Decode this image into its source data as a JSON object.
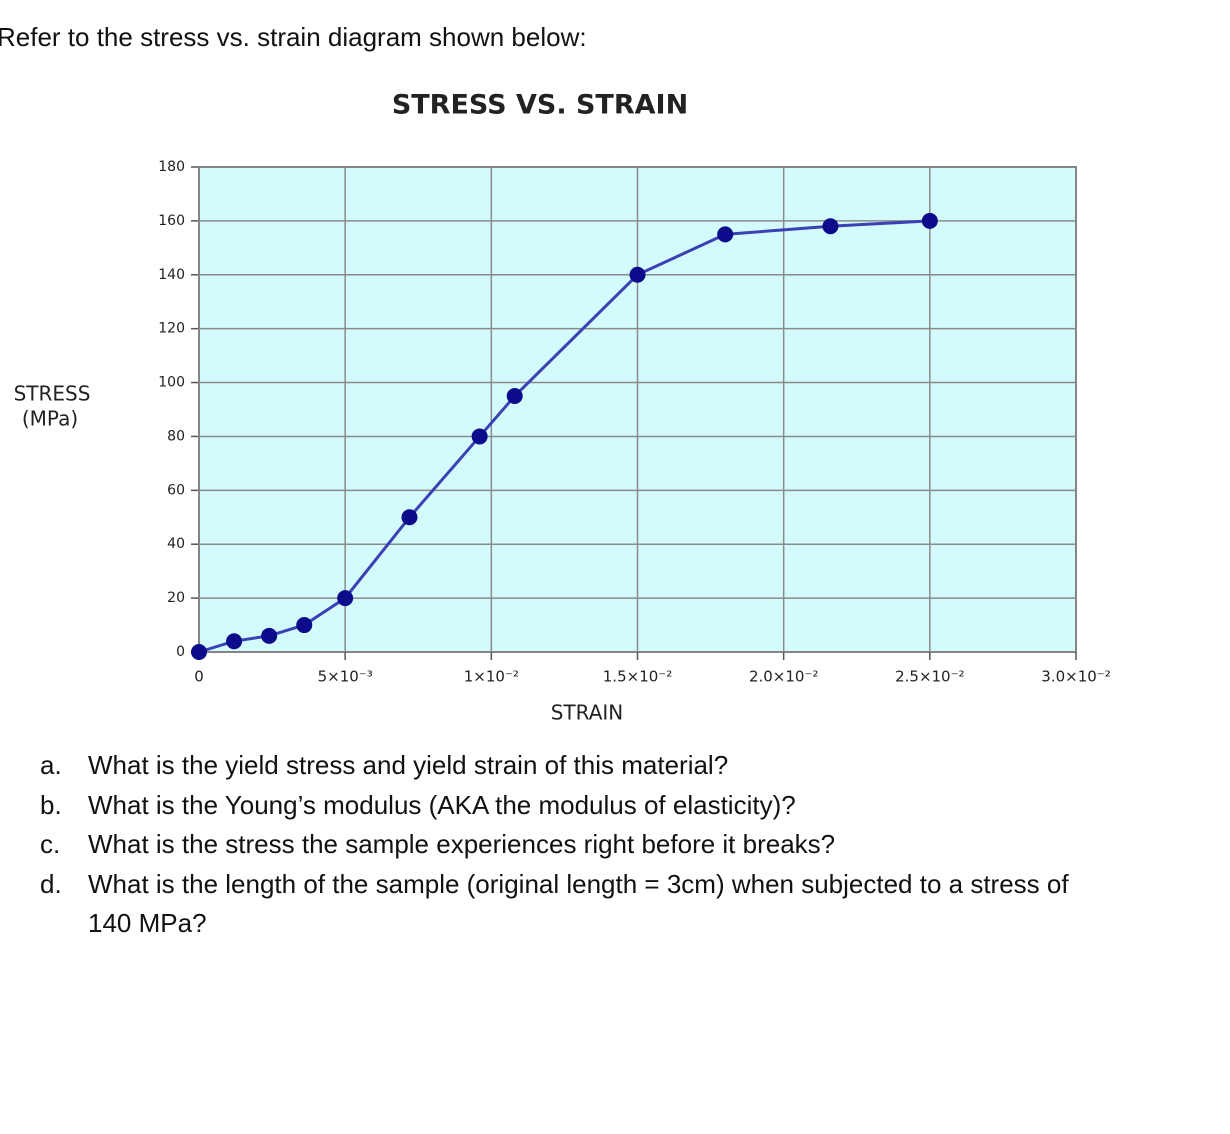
{
  "intro": "Refer to the stress vs. strain diagram shown below:",
  "chart_data": {
    "type": "line",
    "title": "STRESS VS. STRAIN",
    "xlabel": "STRAIN",
    "ylabel_lines": [
      "STRESS",
      "(MPa)"
    ],
    "x": [
      0,
      0.0012,
      0.0024,
      0.0036,
      0.005,
      0.0072,
      0.0096,
      0.0108,
      0.015,
      0.018,
      0.0216,
      0.025
    ],
    "values": [
      0,
      4,
      6,
      10,
      20,
      50,
      80,
      95,
      140,
      155,
      158,
      160
    ],
    "color": "#3b40b4",
    "marker_color": "#0b0b8c",
    "background": "#d4fbfb",
    "grid": true,
    "xlim": [
      0,
      0.03
    ],
    "xticks": [
      0,
      {
        "value": 0.005,
        "label": "5×10⁻³"
      },
      {
        "value": 0.01,
        "label": "1×10⁻²"
      },
      {
        "value": 0.015,
        "label": "1.5×10⁻²"
      },
      {
        "value": 0.02,
        "label": "2.0×10⁻²"
      },
      {
        "value": 0.025,
        "label": "2.5×10⁻²"
      },
      {
        "value": 0.03,
        "label": "3.0×10⁻²"
      }
    ],
    "ylim": [
      0,
      180
    ],
    "yticks": [
      0,
      20,
      40,
      60,
      80,
      100,
      120,
      140,
      160,
      180
    ]
  },
  "questions": [
    {
      "marker": "a.",
      "text": "What is the yield stress and yield strain of this material?"
    },
    {
      "marker": "b.",
      "text": "What is the Young’s modulus (AKA the modulus of elasticity)?"
    },
    {
      "marker": "c.",
      "text": "What is the stress the sample experiences right before it breaks?"
    },
    {
      "marker": "d.",
      "text": "What is the length of the sample (original length = 3cm) when subjected to a stress of 140 MPa?"
    }
  ]
}
